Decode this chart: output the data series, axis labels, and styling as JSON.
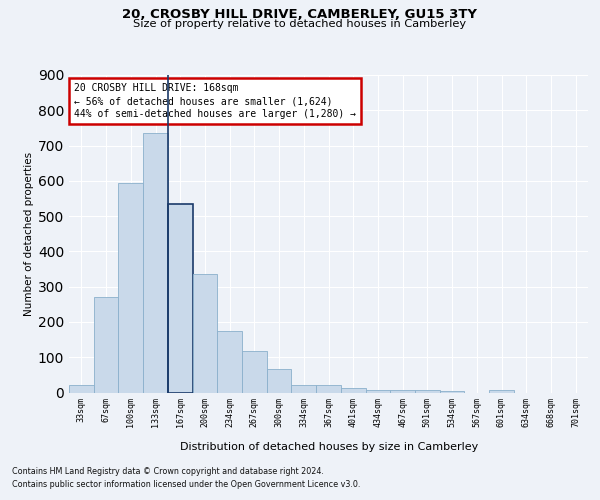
{
  "title1": "20, CROSBY HILL DRIVE, CAMBERLEY, GU15 3TY",
  "title2": "Size of property relative to detached houses in Camberley",
  "xlabel": "Distribution of detached houses by size in Camberley",
  "ylabel": "Number of detached properties",
  "categories": [
    "33sqm",
    "67sqm",
    "100sqm",
    "133sqm",
    "167sqm",
    "200sqm",
    "234sqm",
    "267sqm",
    "300sqm",
    "334sqm",
    "367sqm",
    "401sqm",
    "434sqm",
    "467sqm",
    "501sqm",
    "534sqm",
    "567sqm",
    "601sqm",
    "634sqm",
    "668sqm",
    "701sqm"
  ],
  "values": [
    20,
    270,
    595,
    735,
    535,
    335,
    175,
    118,
    68,
    22,
    20,
    13,
    8,
    7,
    6,
    5,
    0,
    6,
    0,
    0,
    0
  ],
  "highlight_index": 4,
  "bar_color": "#c9d9ea",
  "bar_edge_color": "#8ab0cc",
  "highlight_bar_edge_color": "#1a3a6a",
  "background_color": "#eef2f8",
  "grid_color": "#ffffff",
  "annotation_line1": "20 CROSBY HILL DRIVE: 168sqm",
  "annotation_line2": "← 56% of detached houses are smaller (1,624)",
  "annotation_line3": "44% of semi-detached houses are larger (1,280) →",
  "annotation_box_edge_color": "#cc0000",
  "footer1": "Contains HM Land Registry data © Crown copyright and database right 2024.",
  "footer2": "Contains public sector information licensed under the Open Government Licence v3.0.",
  "ylim_max": 900,
  "yticks": [
    0,
    100,
    200,
    300,
    400,
    500,
    600,
    700,
    800,
    900
  ]
}
